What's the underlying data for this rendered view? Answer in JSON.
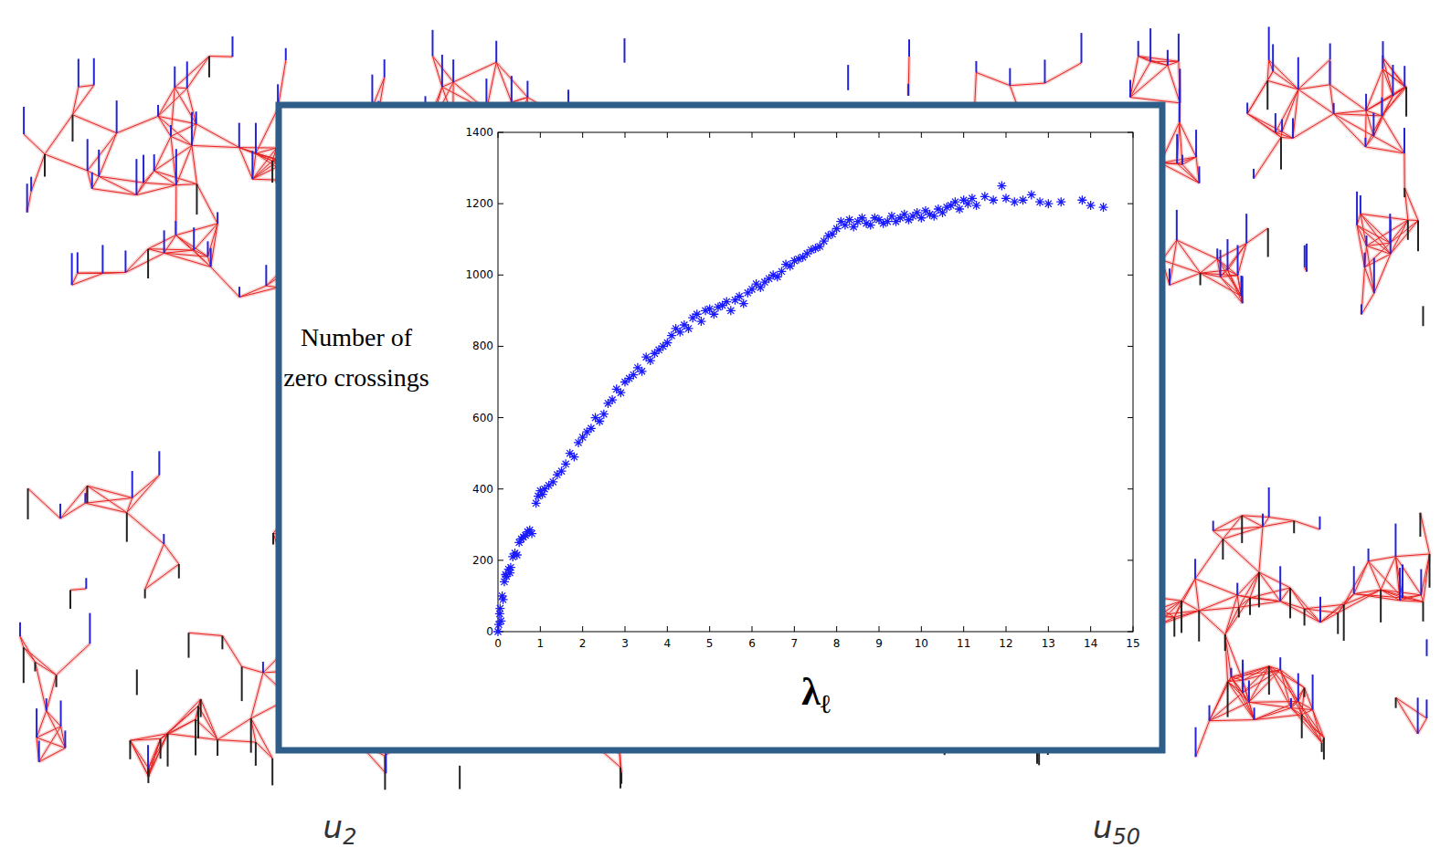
{
  "chart_data": {
    "type": "scatter",
    "xlabel": "λℓ",
    "ylabel": "Number of zero crossings",
    "annotations": [
      "u2",
      "u50"
    ],
    "marker": "asterisk",
    "color": "#1a1aff",
    "xlim": [
      0,
      15
    ],
    "ylim": [
      0,
      1400
    ],
    "xticks": [
      0,
      1,
      2,
      3,
      4,
      5,
      6,
      7,
      8,
      9,
      10,
      11,
      12,
      13,
      14,
      15
    ],
    "yticks": [
      0,
      200,
      400,
      600,
      800,
      1000,
      1200,
      1400
    ],
    "grid": false,
    "x": [
      0,
      0.02,
      0.04,
      0.05,
      0.07,
      0.1,
      0.12,
      0.15,
      0.18,
      0.2,
      0.25,
      0.28,
      0.3,
      0.35,
      0.4,
      0.45,
      0.5,
      0.55,
      0.6,
      0.65,
      0.7,
      0.75,
      0.8,
      0.9,
      0.95,
      1.0,
      1.05,
      1.1,
      1.2,
      1.3,
      1.4,
      1.5,
      1.6,
      1.7,
      1.8,
      1.9,
      2.0,
      2.1,
      2.2,
      2.3,
      2.4,
      2.5,
      2.6,
      2.7,
      2.8,
      2.9,
      3.0,
      3.1,
      3.2,
      3.3,
      3.4,
      3.5,
      3.6,
      3.7,
      3.8,
      3.9,
      4.0,
      4.1,
      4.2,
      4.3,
      4.4,
      4.5,
      4.6,
      4.7,
      4.8,
      4.9,
      5.0,
      5.1,
      5.2,
      5.3,
      5.4,
      5.5,
      5.6,
      5.7,
      5.8,
      5.9,
      6.0,
      6.1,
      6.2,
      6.3,
      6.4,
      6.5,
      6.6,
      6.7,
      6.8,
      6.9,
      7.0,
      7.1,
      7.2,
      7.3,
      7.4,
      7.5,
      7.6,
      7.7,
      7.8,
      7.9,
      8.0,
      8.1,
      8.2,
      8.3,
      8.4,
      8.5,
      8.6,
      8.7,
      8.8,
      8.9,
      9.0,
      9.1,
      9.2,
      9.3,
      9.4,
      9.5,
      9.6,
      9.7,
      9.8,
      9.9,
      10.0,
      10.1,
      10.2,
      10.3,
      10.4,
      10.5,
      10.6,
      10.7,
      10.8,
      10.9,
      11.0,
      11.1,
      11.2,
      11.3,
      11.5,
      11.7,
      11.9,
      12.0,
      12.2,
      12.4,
      12.6,
      12.8,
      13.0,
      13.3,
      13.8,
      14.0,
      14.3
    ],
    "values": [
      0,
      20,
      50,
      65,
      30,
      100,
      90,
      140,
      160,
      155,
      175,
      165,
      180,
      210,
      220,
      215,
      250,
      260,
      265,
      270,
      280,
      285,
      275,
      360,
      380,
      395,
      385,
      400,
      410,
      420,
      440,
      450,
      470,
      500,
      490,
      530,
      545,
      560,
      570,
      600,
      590,
      610,
      640,
      650,
      680,
      670,
      700,
      710,
      720,
      740,
      730,
      770,
      760,
      780,
      790,
      800,
      810,
      830,
      850,
      840,
      860,
      850,
      880,
      890,
      870,
      900,
      905,
      890,
      910,
      915,
      925,
      900,
      930,
      940,
      920,
      950,
      960,
      975,
      965,
      980,
      990,
      1000,
      995,
      1010,
      1030,
      1025,
      1040,
      1045,
      1050,
      1060,
      1070,
      1075,
      1080,
      1095,
      1110,
      1115,
      1130,
      1150,
      1140,
      1155,
      1135,
      1150,
      1160,
      1145,
      1140,
      1160,
      1155,
      1145,
      1150,
      1165,
      1150,
      1160,
      1170,
      1155,
      1165,
      1175,
      1160,
      1180,
      1170,
      1165,
      1185,
      1175,
      1190,
      1195,
      1205,
      1185,
      1210,
      1200,
      1215,
      1195,
      1220,
      1210,
      1250,
      1215,
      1205,
      1210,
      1225,
      1205,
      1200,
      1205,
      1210,
      1195,
      1190
    ]
  }
}
